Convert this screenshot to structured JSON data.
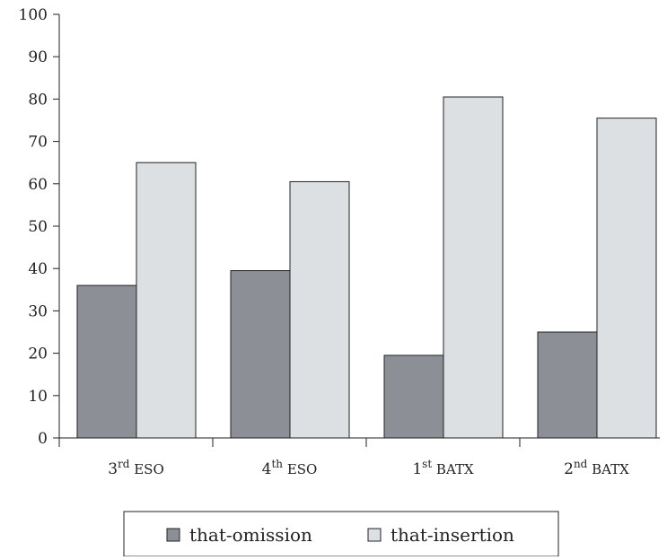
{
  "chart_data": {
    "type": "bar",
    "title": "",
    "xlabel": "",
    "ylabel": "",
    "ylim": [
      0,
      100
    ],
    "yticks": [
      0,
      10,
      20,
      30,
      40,
      50,
      60,
      70,
      80,
      90,
      100
    ],
    "grid": false,
    "legend_position": "bottom",
    "categories": [
      {
        "base": "3",
        "sup": "rd",
        "rest": " ESO"
      },
      {
        "base": "4",
        "sup": "th",
        "rest": " ESO"
      },
      {
        "base": "1",
        "sup": "st",
        "rest": " BATX"
      },
      {
        "base": "2",
        "sup": "nd",
        "rest": " BATX"
      }
    ],
    "series": [
      {
        "name": "that-omission",
        "color": "#8c9096",
        "values": [
          36,
          39.5,
          19.5,
          25
        ]
      },
      {
        "name": "that-insertion",
        "color": "#dde0e3",
        "values": [
          65,
          60.5,
          80.5,
          75.5
        ]
      }
    ]
  }
}
